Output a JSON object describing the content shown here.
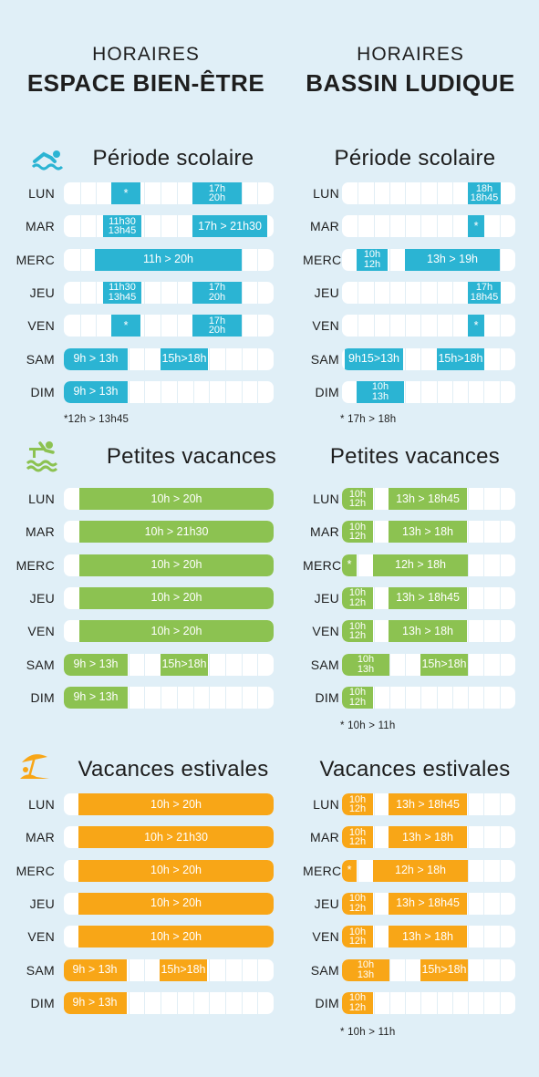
{
  "colors": {
    "blue": "#2bb4d3",
    "green": "#8cc251",
    "orange": "#f8a617",
    "background": "#e0eff7"
  },
  "header": {
    "left": {
      "line1": "HORAIRES",
      "line2": "ESPACE BIEN-ÊTRE"
    },
    "right": {
      "line1": "HORAIRES",
      "line2": "BASSIN LUDIQUE"
    }
  },
  "sections": [
    {
      "id": "scolaire",
      "icon": "swimmer-icon",
      "color": "blue",
      "left": {
        "title": "Période scolaire",
        "rows": [
          {
            "day": "LUN",
            "bars": [
              {
                "label": "*"
              },
              {
                "label": "17h\n20h"
              }
            ]
          },
          {
            "day": "MAR",
            "bars": [
              {
                "label": "11h30\n13h45"
              },
              {
                "label": "17h > 21h30"
              }
            ]
          },
          {
            "day": "MERC",
            "bars": [
              {
                "label": "11h > 20h"
              }
            ]
          },
          {
            "day": "JEU",
            "bars": [
              {
                "label": "11h30\n13h45"
              },
              {
                "label": "17h\n20h"
              }
            ]
          },
          {
            "day": "VEN",
            "bars": [
              {
                "label": "*"
              },
              {
                "label": "17h\n20h"
              }
            ]
          },
          {
            "day": "SAM",
            "bars": [
              {
                "label": "9h > 13h"
              },
              {
                "label": "15h>18h"
              }
            ]
          },
          {
            "day": "DIM",
            "bars": [
              {
                "label": "9h > 13h"
              }
            ]
          }
        ],
        "note": "*12h  > 13h45"
      },
      "right": {
        "title": "Période scolaire",
        "rows": [
          {
            "day": "LUN",
            "bars": [
              {
                "label": "18h\n18h45"
              }
            ]
          },
          {
            "day": "MAR",
            "bars": [
              {
                "label": "*"
              }
            ]
          },
          {
            "day": "MERC",
            "bars": [
              {
                "label": "10h\n12h"
              },
              {
                "label": "13h > 19h"
              }
            ]
          },
          {
            "day": "JEU",
            "bars": [
              {
                "label": "17h\n18h45"
              }
            ]
          },
          {
            "day": "VEN",
            "bars": [
              {
                "label": "*"
              }
            ]
          },
          {
            "day": "SAM",
            "bars": [
              {
                "label": "9h15>13h"
              },
              {
                "label": "15h>18h"
              }
            ]
          },
          {
            "day": "DIM",
            "bars": [
              {
                "label": "10h\n13h"
              }
            ]
          }
        ],
        "note": "* 17h > 18h"
      }
    },
    {
      "id": "petites",
      "icon": "diver-icon",
      "color": "green",
      "left": {
        "title": "Petites vacances",
        "rows": [
          {
            "day": "LUN",
            "bars": [
              {
                "label": "10h > 20h"
              }
            ]
          },
          {
            "day": "MAR",
            "bars": [
              {
                "label": "10h > 21h30"
              }
            ]
          },
          {
            "day": "MERC",
            "bars": [
              {
                "label": "10h > 20h"
              }
            ]
          },
          {
            "day": "JEU",
            "bars": [
              {
                "label": "10h > 20h"
              }
            ]
          },
          {
            "day": "VEN",
            "bars": [
              {
                "label": "10h > 20h"
              }
            ]
          },
          {
            "day": "SAM",
            "bars": [
              {
                "label": "9h > 13h"
              },
              {
                "label": "15h>18h"
              }
            ]
          },
          {
            "day": "DIM",
            "bars": [
              {
                "label": "9h > 13h"
              }
            ]
          }
        ],
        "note": ""
      },
      "right": {
        "title": "Petites vacances",
        "rows": [
          {
            "day": "LUN",
            "bars": [
              {
                "label": "10h\n12h"
              },
              {
                "label": "13h > 18h45"
              }
            ]
          },
          {
            "day": "MAR",
            "bars": [
              {
                "label": "10h\n12h"
              },
              {
                "label": "13h > 18h"
              }
            ]
          },
          {
            "day": "MERC",
            "bars": [
              {
                "label": "*"
              },
              {
                "label": "12h > 18h"
              }
            ]
          },
          {
            "day": "JEU",
            "bars": [
              {
                "label": "10h\n12h"
              },
              {
                "label": "13h > 18h45"
              }
            ]
          },
          {
            "day": "VEN",
            "bars": [
              {
                "label": "10h\n12h"
              },
              {
                "label": "13h > 18h"
              }
            ]
          },
          {
            "day": "SAM",
            "bars": [
              {
                "label": "10h\n13h"
              },
              {
                "label": "15h>18h"
              }
            ]
          },
          {
            "day": "DIM",
            "bars": [
              {
                "label": "10h\n12h"
              }
            ]
          }
        ],
        "note": "* 10h > 11h"
      }
    },
    {
      "id": "estivales",
      "icon": "beach-umbrella-icon",
      "color": "orange",
      "left": {
        "title": "Vacances estivales",
        "rows": [
          {
            "day": "LUN",
            "bars": [
              {
                "label": "10h > 20h"
              }
            ]
          },
          {
            "day": "MAR",
            "bars": [
              {
                "label": "10h > 21h30"
              }
            ]
          },
          {
            "day": "MERC",
            "bars": [
              {
                "label": "10h > 20h"
              }
            ]
          },
          {
            "day": "JEU",
            "bars": [
              {
                "label": "10h > 20h"
              }
            ]
          },
          {
            "day": "VEN",
            "bars": [
              {
                "label": "10h > 20h"
              }
            ]
          },
          {
            "day": "SAM",
            "bars": [
              {
                "label": "9h > 13h"
              },
              {
                "label": "15h>18h"
              }
            ]
          },
          {
            "day": "DIM",
            "bars": [
              {
                "label": "9h > 13h"
              }
            ]
          }
        ],
        "note": ""
      },
      "right": {
        "title": "Vacances estivales",
        "rows": [
          {
            "day": "LUN",
            "bars": [
              {
                "label": "10h\n12h"
              },
              {
                "label": "13h > 18h45"
              }
            ]
          },
          {
            "day": "MAR",
            "bars": [
              {
                "label": "10h\n12h"
              },
              {
                "label": "13h > 18h"
              }
            ]
          },
          {
            "day": "MERC",
            "bars": [
              {
                "label": "*"
              },
              {
                "label": "12h > 18h"
              }
            ]
          },
          {
            "day": "JEU",
            "bars": [
              {
                "label": "10h\n12h"
              },
              {
                "label": "13h > 18h45"
              }
            ]
          },
          {
            "day": "VEN",
            "bars": [
              {
                "label": "10h\n12h"
              },
              {
                "label": "13h > 18h"
              }
            ]
          },
          {
            "day": "SAM",
            "bars": [
              {
                "label": "10h\n13h"
              },
              {
                "label": "15h>18h"
              }
            ]
          },
          {
            "day": "DIM",
            "bars": [
              {
                "label": "10h\n12h"
              }
            ]
          }
        ],
        "note": "* 10h > 11h"
      }
    }
  ]
}
